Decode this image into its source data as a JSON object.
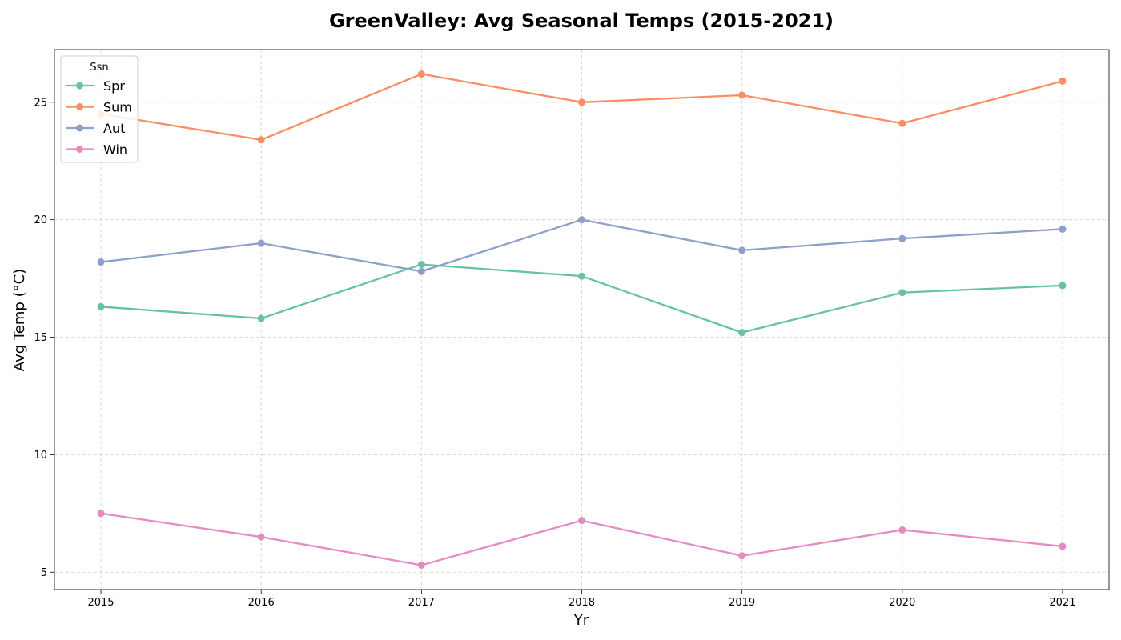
{
  "chart_data": {
    "type": "line",
    "title": "GreenValley: Avg Seasonal Temps (2015-2021)",
    "xlabel": "Yr",
    "ylabel": "Avg Temp (°C)",
    "x": [
      "2015",
      "2016",
      "2017",
      "2018",
      "2019",
      "2020",
      "2021"
    ],
    "xlim": [
      2014.71,
      2021.29
    ],
    "ylim": [
      4.26,
      27.24
    ],
    "yticks": [
      5,
      10,
      15,
      20,
      25
    ],
    "grid": true,
    "legend": {
      "title": "Ssn",
      "placement": "top-left"
    },
    "series": [
      {
        "name": "Spr",
        "color": "#66c2a5",
        "values": [
          16.3,
          15.8,
          18.1,
          17.6,
          15.2,
          16.9,
          17.2
        ]
      },
      {
        "name": "Sum",
        "color": "#fc8d62",
        "values": [
          24.5,
          23.4,
          26.2,
          25.0,
          25.3,
          24.1,
          25.9
        ]
      },
      {
        "name": "Aut",
        "color": "#8da0cb",
        "values": [
          18.2,
          19.0,
          17.8,
          20.0,
          18.7,
          19.2,
          19.6
        ]
      },
      {
        "name": "Win",
        "color": "#e78ac3",
        "values": [
          7.5,
          6.5,
          5.3,
          7.2,
          5.7,
          6.8,
          6.1
        ]
      }
    ]
  }
}
